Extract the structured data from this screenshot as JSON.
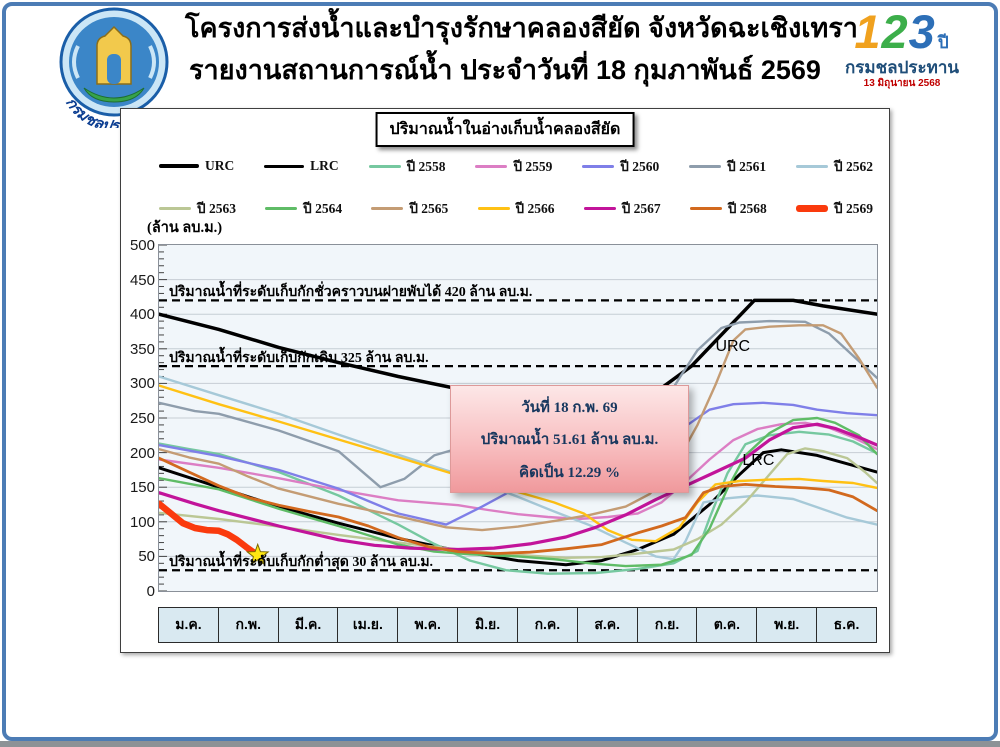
{
  "header": {
    "title_line1": "โครงการส่งน้ำและบำรุงรักษาคลองสียัด จังหวัดฉะเชิงเทรา",
    "title_line2": "รายงานสถานการณ์น้ำ ประจำวันที่ 18 กุมภาพันธ์ 2569",
    "left_logo_caption": "กรมชลประทาน",
    "right_logo": {
      "digit1": "1",
      "digit2": "2",
      "digit3": "3",
      "year_suffix": "ปี",
      "org": "กรมชลประทาน",
      "date": "13 มิถุนายน 2568"
    }
  },
  "chart_title": "ปริมาณน้ำในอ่างเก็บน้ำคลองสียัด",
  "unit_label": "(ล้าน ลบ.ม.)",
  "annotation_box": {
    "line1": "วันที่ 18 ก.พ. 69",
    "line2": "ปริมาณน้ำ 51.61 ล้าน ลบ.ม.",
    "line3": "คิดเป็น 12.29 %"
  },
  "chart_data": {
    "type": "line",
    "x_categories": [
      "ม.ค.",
      "ก.พ.",
      "มี.ค.",
      "เม.ย.",
      "พ.ค.",
      "มิ.ย.",
      "ก.ค.",
      "ส.ค.",
      "ก.ย.",
      "ต.ค.",
      "พ.ย.",
      "ธ.ค."
    ],
    "y_axis": {
      "min": 0,
      "max": 500,
      "step": 50
    },
    "grid": true,
    "colors": {
      "grid": "#C6CDD4",
      "plot_bg": "#F1F6FA",
      "reference": "#000000",
      "star": "#FFE812"
    },
    "reference_lines": [
      {
        "value": 420,
        "label": "ปริมาณน้ำที่ระดับเก็บกักชั่วคราวบนฝายพับได้ 420 ล้าน ลบ.ม."
      },
      {
        "value": 325,
        "label": "ปริมาณน้ำที่ระดับเก็บกักเดิม 325 ล้าน ลบ.ม."
      },
      {
        "value": 30,
        "label": "ปริมาณน้ำที่ระดับเก็บกักต่ำสุด 30 ล้าน ลบ.ม."
      }
    ],
    "inline_labels": [
      {
        "text": "URC",
        "x": 9.3,
        "y": 352
      },
      {
        "text": "LRC",
        "x": 9.75,
        "y": 188
      }
    ],
    "marker": {
      "shape": "star",
      "x": 1.65,
      "value": 51.61
    },
    "series": [
      {
        "name": "URC",
        "color": "#000000",
        "width": 3.5,
        "points": [
          [
            0,
            400
          ],
          [
            1,
            378
          ],
          [
            2,
            352
          ],
          [
            3,
            330
          ],
          [
            4,
            310
          ],
          [
            5,
            292
          ],
          [
            6,
            276
          ],
          [
            7,
            266
          ],
          [
            7.9,
            262
          ],
          [
            8.9,
            325
          ],
          [
            9.95,
            420
          ],
          [
            10.6,
            420
          ],
          [
            11.1,
            412
          ],
          [
            12,
            400
          ]
        ]
      },
      {
        "name": "LRC",
        "color": "#000000",
        "width": 3,
        "points": [
          [
            0,
            178
          ],
          [
            1,
            150
          ],
          [
            2,
            122
          ],
          [
            3,
            98
          ],
          [
            4,
            76
          ],
          [
            5,
            58
          ],
          [
            6,
            44
          ],
          [
            6.8,
            38
          ],
          [
            7.4,
            44
          ],
          [
            8,
            60
          ],
          [
            8.6,
            82
          ],
          [
            9.2,
            125
          ],
          [
            9.7,
            168
          ],
          [
            10.1,
            200
          ],
          [
            10.4,
            204
          ],
          [
            11,
            196
          ],
          [
            12,
            172
          ]
        ]
      },
      {
        "name": "ปี 2558",
        "color": "#76C8A0",
        "width": 2.4,
        "points": [
          [
            0,
            213
          ],
          [
            0.5,
            205
          ],
          [
            1,
            198
          ],
          [
            2,
            172
          ],
          [
            3,
            138
          ],
          [
            4,
            96
          ],
          [
            4.6,
            68
          ],
          [
            5.2,
            44
          ],
          [
            5.8,
            30
          ],
          [
            6.5,
            25
          ],
          [
            7.3,
            26
          ],
          [
            8,
            32
          ],
          [
            8.6,
            40
          ],
          [
            9,
            58
          ],
          [
            9.2,
            105
          ],
          [
            9.5,
            170
          ],
          [
            9.8,
            212
          ],
          [
            10.2,
            225
          ],
          [
            10.7,
            230
          ],
          [
            11.2,
            226
          ],
          [
            11.6,
            216
          ],
          [
            12,
            199
          ]
        ]
      },
      {
        "name": "ปี 2559",
        "color": "#DC7EC4",
        "width": 2.4,
        "points": [
          [
            0,
            190
          ],
          [
            1,
            178
          ],
          [
            2,
            163
          ],
          [
            3,
            146
          ],
          [
            4,
            131
          ],
          [
            5,
            124
          ],
          [
            5.5,
            117
          ],
          [
            6,
            111
          ],
          [
            6.5,
            107
          ],
          [
            7,
            104
          ],
          [
            7.5,
            107
          ],
          [
            8,
            112
          ],
          [
            8.4,
            128
          ],
          [
            8.8,
            158
          ],
          [
            9.2,
            190
          ],
          [
            9.6,
            218
          ],
          [
            10,
            234
          ],
          [
            10.4,
            241
          ],
          [
            10.8,
            243
          ],
          [
            11.2,
            236
          ],
          [
            11.6,
            222
          ],
          [
            12,
            205
          ]
        ]
      },
      {
        "name": "ปี 2560",
        "color": "#7F7FE8",
        "width": 2.4,
        "points": [
          [
            0,
            211
          ],
          [
            1,
            195
          ],
          [
            2,
            175
          ],
          [
            3,
            148
          ],
          [
            4,
            112
          ],
          [
            4.8,
            96
          ],
          [
            5.4,
            122
          ],
          [
            6,
            150
          ],
          [
            6.6,
            176
          ],
          [
            7,
            184
          ],
          [
            7.6,
            184
          ],
          [
            8,
            188
          ],
          [
            8.4,
            202
          ],
          [
            8.8,
            238
          ],
          [
            9.2,
            262
          ],
          [
            9.6,
            270
          ],
          [
            10.1,
            272
          ],
          [
            10.6,
            269
          ],
          [
            11,
            262
          ],
          [
            11.5,
            257
          ],
          [
            12,
            254
          ]
        ]
      },
      {
        "name": "ปี 2561",
        "color": "#8E9DAC",
        "width": 2.4,
        "points": [
          [
            0,
            272
          ],
          [
            0.6,
            260
          ],
          [
            1,
            256
          ],
          [
            2,
            232
          ],
          [
            3,
            202
          ],
          [
            3.7,
            150
          ],
          [
            4.1,
            162
          ],
          [
            4.6,
            196
          ],
          [
            5,
            206
          ],
          [
            5.5,
            209
          ],
          [
            6,
            201
          ],
          [
            6.4,
            196
          ],
          [
            7,
            212
          ],
          [
            7.5,
            221
          ],
          [
            8,
            229
          ],
          [
            8.3,
            252
          ],
          [
            8.7,
            308
          ],
          [
            9,
            348
          ],
          [
            9.4,
            380
          ],
          [
            9.7,
            388
          ],
          [
            10.2,
            390
          ],
          [
            10.8,
            389
          ],
          [
            11.2,
            372
          ],
          [
            11.6,
            340
          ],
          [
            12,
            308
          ]
        ]
      },
      {
        "name": "ปี 2562",
        "color": "#A6C9D8",
        "width": 2.4,
        "points": [
          [
            0,
            310
          ],
          [
            1,
            283
          ],
          [
            2,
            256
          ],
          [
            3,
            226
          ],
          [
            4,
            197
          ],
          [
            5,
            169
          ],
          [
            6,
            136
          ],
          [
            6.6,
            115
          ],
          [
            7.2,
            95
          ],
          [
            7.8,
            70
          ],
          [
            8.3,
            50
          ],
          [
            8.6,
            46
          ],
          [
            8.8,
            72
          ],
          [
            9.1,
            128
          ],
          [
            9.5,
            134
          ],
          [
            10,
            138
          ],
          [
            10.6,
            133
          ],
          [
            11,
            121
          ],
          [
            11.5,
            106
          ],
          [
            12,
            96
          ]
        ]
      },
      {
        "name": "ปี 2563",
        "color": "#BBC795",
        "width": 2.4,
        "points": [
          [
            0,
            113
          ],
          [
            1,
            104
          ],
          [
            2,
            93
          ],
          [
            3,
            81
          ],
          [
            4,
            70
          ],
          [
            5,
            60
          ],
          [
            5.6,
            55
          ],
          [
            6.2,
            51
          ],
          [
            6.8,
            48
          ],
          [
            7.4,
            49
          ],
          [
            8,
            54
          ],
          [
            8.6,
            60
          ],
          [
            9,
            75
          ],
          [
            9.4,
            96
          ],
          [
            9.8,
            128
          ],
          [
            10.2,
            168
          ],
          [
            10.5,
            198
          ],
          [
            10.8,
            206
          ],
          [
            11.1,
            202
          ],
          [
            11.5,
            192
          ],
          [
            11.8,
            172
          ],
          [
            12,
            156
          ]
        ]
      },
      {
        "name": "ปี 2564",
        "color": "#5FBC66",
        "width": 2.4,
        "points": [
          [
            0,
            163
          ],
          [
            1,
            147
          ],
          [
            2,
            119
          ],
          [
            3,
            94
          ],
          [
            4,
            67
          ],
          [
            4.6,
            57
          ],
          [
            5.2,
            53
          ],
          [
            6,
            50
          ],
          [
            6.6,
            46
          ],
          [
            7.2,
            40
          ],
          [
            7.8,
            36
          ],
          [
            8.4,
            38
          ],
          [
            8.9,
            52
          ],
          [
            9.2,
            90
          ],
          [
            9.5,
            148
          ],
          [
            9.8,
            196
          ],
          [
            10.2,
            228
          ],
          [
            10.6,
            247
          ],
          [
            11,
            250
          ],
          [
            11.3,
            243
          ],
          [
            11.7,
            225
          ],
          [
            12,
            198
          ]
        ]
      },
      {
        "name": "ปี 2565",
        "color": "#C49C74",
        "width": 2.4,
        "points": [
          [
            0,
            205
          ],
          [
            0.5,
            193
          ],
          [
            1,
            184
          ],
          [
            1.5,
            165
          ],
          [
            2,
            148
          ],
          [
            3,
            126
          ],
          [
            4,
            108
          ],
          [
            4.8,
            92
          ],
          [
            5.4,
            88
          ],
          [
            6,
            93
          ],
          [
            6.6,
            101
          ],
          [
            7.2,
            110
          ],
          [
            7.8,
            122
          ],
          [
            8.2,
            140
          ],
          [
            8.6,
            178
          ],
          [
            9,
            240
          ],
          [
            9.3,
            298
          ],
          [
            9.6,
            362
          ],
          [
            9.8,
            378
          ],
          [
            10.2,
            382
          ],
          [
            10.7,
            384
          ],
          [
            11.1,
            384
          ],
          [
            11.4,
            372
          ],
          [
            11.7,
            336
          ],
          [
            12,
            294
          ]
        ]
      },
      {
        "name": "ปี 2566",
        "color": "#FFC114",
        "width": 2.4,
        "points": [
          [
            0,
            297
          ],
          [
            1,
            270
          ],
          [
            2,
            245
          ],
          [
            3,
            219
          ],
          [
            4,
            193
          ],
          [
            5,
            167
          ],
          [
            6,
            143
          ],
          [
            6.6,
            128
          ],
          [
            7.1,
            112
          ],
          [
            7.5,
            88
          ],
          [
            7.9,
            74
          ],
          [
            8.3,
            72
          ],
          [
            8.7,
            92
          ],
          [
            9,
            128
          ],
          [
            9.3,
            154
          ],
          [
            9.7,
            159
          ],
          [
            10.2,
            161
          ],
          [
            10.7,
            162
          ],
          [
            11.1,
            159
          ],
          [
            11.6,
            156
          ],
          [
            12,
            149
          ]
        ]
      },
      {
        "name": "ปี 2567",
        "color": "#C2149A",
        "width": 3.2,
        "points": [
          [
            0,
            142
          ],
          [
            0.6,
            126
          ],
          [
            1,
            116
          ],
          [
            2,
            94
          ],
          [
            3,
            74
          ],
          [
            3.6,
            66
          ],
          [
            4.2,
            62
          ],
          [
            5,
            60
          ],
          [
            5.6,
            62
          ],
          [
            6.2,
            68
          ],
          [
            6.8,
            78
          ],
          [
            7.3,
            92
          ],
          [
            7.8,
            110
          ],
          [
            8.3,
            132
          ],
          [
            8.8,
            152
          ],
          [
            9.3,
            172
          ],
          [
            9.8,
            192
          ],
          [
            10.2,
            218
          ],
          [
            10.6,
            236
          ],
          [
            11,
            241
          ],
          [
            11.3,
            235
          ],
          [
            11.7,
            222
          ],
          [
            12,
            211
          ]
        ]
      },
      {
        "name": "ปี 2568",
        "color": "#D2691E",
        "width": 2.8,
        "points": [
          [
            0,
            192
          ],
          [
            0.5,
            172
          ],
          [
            1,
            152
          ],
          [
            1.5,
            135
          ],
          [
            2,
            124
          ],
          [
            2.5,
            115
          ],
          [
            3,
            107
          ],
          [
            3.5,
            94
          ],
          [
            4,
            77
          ],
          [
            4.5,
            64
          ],
          [
            5,
            57
          ],
          [
            5.6,
            54
          ],
          [
            6.2,
            56
          ],
          [
            6.8,
            61
          ],
          [
            7.4,
            67
          ],
          [
            8,
            84
          ],
          [
            8.4,
            94
          ],
          [
            8.8,
            106
          ],
          [
            9.1,
            142
          ],
          [
            9.4,
            151
          ],
          [
            9.8,
            154
          ],
          [
            10.3,
            151
          ],
          [
            10.8,
            149
          ],
          [
            11.2,
            146
          ],
          [
            11.6,
            136
          ],
          [
            12,
            116
          ]
        ]
      },
      {
        "name": "ปี 2569",
        "color": "#FA3A0D",
        "width": 6.5,
        "points": [
          [
            0,
            126
          ],
          [
            0.2,
            112
          ],
          [
            0.4,
            98
          ],
          [
            0.6,
            91
          ],
          [
            0.8,
            88
          ],
          [
            1,
            87
          ],
          [
            1.15,
            82
          ],
          [
            1.3,
            74
          ],
          [
            1.45,
            64
          ],
          [
            1.65,
            51.61
          ]
        ]
      }
    ]
  }
}
